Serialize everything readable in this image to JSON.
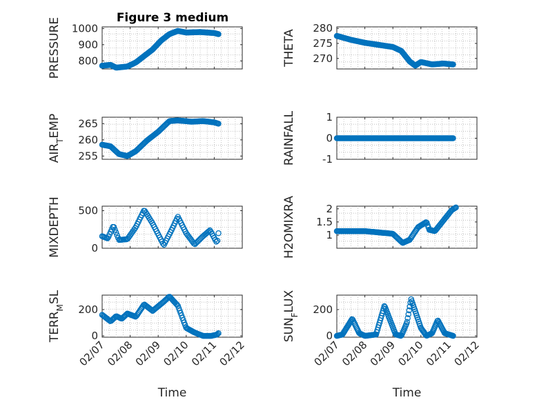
{
  "chart_data": {
    "type": "scatter",
    "title": "Figure 3 medium",
    "marker": "circle",
    "color": "#0072BD",
    "x_tick_labels": [
      "02/07",
      "02/08",
      "02/09",
      "02/10",
      "02/11",
      "02/12"
    ],
    "x_label": "Time",
    "xlim_days": [
      0,
      5
    ],
    "panels": [
      {
        "name": "PRESSURE",
        "ylabel": "PRESSURE",
        "ylim": [
          750,
          1010
        ],
        "yticks": [
          800,
          900,
          1000
        ],
        "ytick_labels": [
          "800",
          "900",
          "1000"
        ],
        "keypoints": [
          [
            0,
            770
          ],
          [
            0.3,
            775
          ],
          [
            0.5,
            758
          ],
          [
            0.9,
            765
          ],
          [
            1.2,
            790
          ],
          [
            1.5,
            830
          ],
          [
            1.8,
            870
          ],
          [
            2.1,
            925
          ],
          [
            2.4,
            965
          ],
          [
            2.7,
            985
          ],
          [
            3.0,
            975
          ],
          [
            3.5,
            978
          ],
          [
            4.0,
            972
          ],
          [
            4.15,
            965
          ]
        ],
        "samples": 170
      },
      {
        "name": "THETA",
        "ylabel": "THETA",
        "ylim": [
          266.5,
          280.5
        ],
        "yticks": [
          270,
          275,
          280
        ],
        "ytick_labels": [
          "270",
          "275",
          "280"
        ],
        "keypoints": [
          [
            0,
            277.5
          ],
          [
            0.5,
            276.2
          ],
          [
            1.0,
            275.2
          ],
          [
            1.5,
            274.5
          ],
          [
            2.0,
            273.8
          ],
          [
            2.3,
            272.5
          ],
          [
            2.6,
            269.0
          ],
          [
            2.8,
            267.6
          ],
          [
            3.0,
            268.8
          ],
          [
            3.4,
            268.0
          ],
          [
            3.8,
            268.3
          ],
          [
            4.15,
            268.0
          ]
        ],
        "samples": 170
      },
      {
        "name": "AIR_TEMP",
        "ylabel": "AIR",
        "ylabel_sub": "T",
        "ylabel_tail": "EMP",
        "ylim": [
          254,
          267
        ],
        "yticks": [
          255,
          260,
          265
        ],
        "ytick_labels": [
          "255",
          "260",
          "265"
        ],
        "keypoints": [
          [
            0,
            258.5
          ],
          [
            0.3,
            258.0
          ],
          [
            0.6,
            255.6
          ],
          [
            0.9,
            255.0
          ],
          [
            1.2,
            256.5
          ],
          [
            1.6,
            259.8
          ],
          [
            2.0,
            262.5
          ],
          [
            2.4,
            265.8
          ],
          [
            2.7,
            266.0
          ],
          [
            3.2,
            265.6
          ],
          [
            3.6,
            265.8
          ],
          [
            4.0,
            265.4
          ],
          [
            4.15,
            265.0
          ]
        ],
        "samples": 140
      },
      {
        "name": "RAINFALL",
        "ylabel": "RAINFALL",
        "ylim": [
          -1,
          1
        ],
        "yticks": [
          -1,
          0,
          1
        ],
        "ytick_labels": [
          "-1",
          "0",
          "1"
        ],
        "keypoints": [
          [
            0,
            0
          ],
          [
            4.15,
            0
          ]
        ],
        "samples": 150
      },
      {
        "name": "MIXDEPTH",
        "ylabel": "MIXDEPTH",
        "ylim": [
          0,
          560
        ],
        "yticks": [
          0,
          500
        ],
        "ytick_labels": [
          "0",
          "500"
        ],
        "keypoints": [
          [
            0,
            160
          ],
          [
            0.2,
            130
          ],
          [
            0.4,
            300
          ],
          [
            0.6,
            110
          ],
          [
            0.9,
            120
          ],
          [
            1.2,
            280
          ],
          [
            1.5,
            510
          ],
          [
            1.8,
            330
          ],
          [
            2.2,
            40
          ],
          [
            2.5,
            260
          ],
          [
            2.7,
            420
          ],
          [
            3.0,
            200
          ],
          [
            3.3,
            50
          ],
          [
            3.6,
            160
          ],
          [
            3.85,
            240
          ],
          [
            4.1,
            70
          ],
          [
            4.15,
            200
          ]
        ],
        "samples": 110
      },
      {
        "name": "H2OMIXRA",
        "ylabel": "H2OMIXRA",
        "ylim": [
          0.5,
          2.1
        ],
        "yticks": [
          1,
          1.5,
          2
        ],
        "ytick_labels": [
          "1",
          "1.5",
          "2"
        ],
        "keypoints": [
          [
            0,
            1.15
          ],
          [
            0.5,
            1.15
          ],
          [
            1.0,
            1.15
          ],
          [
            1.5,
            1.1
          ],
          [
            2.0,
            1.05
          ],
          [
            2.35,
            0.7
          ],
          [
            2.6,
            0.82
          ],
          [
            2.9,
            1.3
          ],
          [
            3.2,
            1.5
          ],
          [
            3.3,
            1.2
          ],
          [
            3.5,
            1.15
          ],
          [
            3.8,
            1.55
          ],
          [
            4.1,
            1.95
          ],
          [
            4.25,
            2.05
          ]
        ],
        "samples": 140
      },
      {
        "name": "TERR_MSL",
        "ylabel": "TERR",
        "ylabel_sub": "M",
        "ylabel_tail": "SL",
        "ylim": [
          -10,
          310
        ],
        "yticks": [
          0,
          200
        ],
        "ytick_labels": [
          "0",
          "200"
        ],
        "keypoints": [
          [
            0,
            160
          ],
          [
            0.3,
            110
          ],
          [
            0.5,
            150
          ],
          [
            0.7,
            130
          ],
          [
            0.9,
            170
          ],
          [
            1.2,
            145
          ],
          [
            1.5,
            240
          ],
          [
            1.8,
            190
          ],
          [
            2.2,
            260
          ],
          [
            2.4,
            300
          ],
          [
            2.7,
            230
          ],
          [
            3.0,
            60
          ],
          [
            3.3,
            25
          ],
          [
            3.6,
            0
          ],
          [
            3.9,
            0
          ],
          [
            4.1,
            10
          ],
          [
            4.15,
            20
          ]
        ],
        "samples": 130
      },
      {
        "name": "SUN_FLUX",
        "ylabel": "SUN",
        "ylabel_sub": "F",
        "ylabel_tail": "LUX",
        "ylim": [
          -10,
          310
        ],
        "yticks": [
          0,
          200
        ],
        "ytick_labels": [
          "0",
          "200"
        ],
        "keypoints": [
          [
            0,
            0
          ],
          [
            0.2,
            10
          ],
          [
            0.55,
            130
          ],
          [
            0.8,
            20
          ],
          [
            1.0,
            0
          ],
          [
            1.4,
            10
          ],
          [
            1.7,
            230
          ],
          [
            2.1,
            10
          ],
          [
            2.3,
            0
          ],
          [
            2.5,
            100
          ],
          [
            2.65,
            280
          ],
          [
            3.0,
            60
          ],
          [
            3.2,
            0
          ],
          [
            3.4,
            20
          ],
          [
            3.6,
            120
          ],
          [
            3.85,
            20
          ],
          [
            4.15,
            0
          ]
        ],
        "samples": 170
      }
    ]
  }
}
